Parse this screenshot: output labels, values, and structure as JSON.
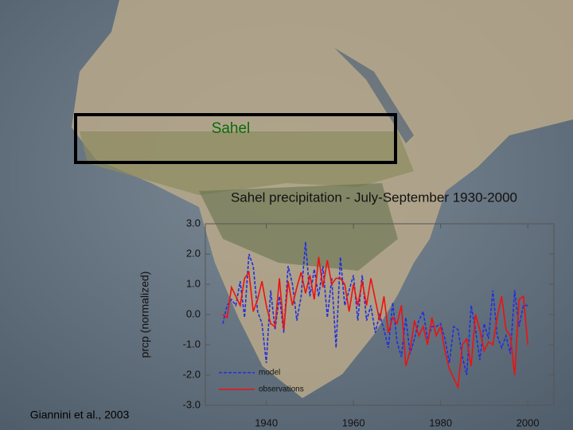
{
  "chart_data": {
    "type": "line",
    "title": "Sahel precipitation - July-September 1930-2000",
    "y_label": "prcp (normalized)",
    "annotations": [
      "Sahel",
      "Giannini et al., 2003"
    ],
    "x": [
      1930,
      1931,
      1932,
      1933,
      1934,
      1935,
      1936,
      1937,
      1938,
      1939,
      1940,
      1941,
      1942,
      1943,
      1944,
      1945,
      1946,
      1947,
      1948,
      1949,
      1950,
      1951,
      1952,
      1953,
      1954,
      1955,
      1956,
      1957,
      1958,
      1959,
      1960,
      1961,
      1962,
      1963,
      1964,
      1965,
      1966,
      1967,
      1968,
      1969,
      1970,
      1971,
      1972,
      1973,
      1974,
      1975,
      1976,
      1977,
      1978,
      1979,
      1980,
      1981,
      1982,
      1983,
      1984,
      1985,
      1986,
      1987,
      1988,
      1989,
      1990,
      1991,
      1992,
      1993,
      1994,
      1995,
      1996,
      1997,
      1998,
      1999,
      2000
    ],
    "series": [
      {
        "name": "model",
        "color": "#1f2fe0",
        "dash": true,
        "values": [
          -0.3,
          0.3,
          0.5,
          0.3,
          1.1,
          -0.1,
          2.0,
          1.6,
          0.1,
          -0.3,
          -1.6,
          0.8,
          -0.5,
          0.6,
          -0.6,
          1.6,
          1.0,
          -0.2,
          0.6,
          2.4,
          0.6,
          1.5,
          0.6,
          1.6,
          -0.1,
          1.2,
          -1.1,
          1.9,
          0.3,
          0.8,
          1.3,
          -0.2,
          1.3,
          -0.2,
          0.3,
          -0.6,
          0.0,
          -0.5,
          -1.1,
          0.4,
          -0.9,
          -1.4,
          -0.1,
          -1.3,
          -0.8,
          -0.2,
          0.1,
          -0.8,
          -0.4,
          -0.4,
          -0.3,
          -0.8,
          -1.6,
          -0.4,
          -0.5,
          -1.4,
          -2.0,
          0.3,
          -0.5,
          -1.5,
          -0.3,
          -0.8,
          0.8,
          -0.7,
          -1.1,
          -0.7,
          -1.3,
          0.8,
          -0.4,
          0.3,
          0.3
        ]
      },
      {
        "name": "observations",
        "color": "#ee1111",
        "dash": false,
        "values": [
          0.0,
          -0.1,
          0.9,
          0.6,
          0.3,
          1.2,
          1.4,
          0.1,
          0.5,
          1.1,
          0.3,
          -0.3,
          -0.4,
          1.2,
          -0.5,
          1.1,
          0.3,
          0.9,
          1.4,
          0.7,
          1.3,
          0.5,
          1.9,
          0.9,
          1.8,
          1.0,
          1.2,
          1.2,
          1.0,
          0.1,
          1.0,
          0.3,
          1.1,
          0.3,
          1.2,
          0.5,
          -0.2,
          0.6,
          -0.6,
          -0.1,
          -0.3,
          0.3,
          -1.7,
          -1.2,
          -0.2,
          -0.7,
          -0.4,
          -1.0,
          -0.1,
          -0.7,
          -0.4,
          -1.2,
          -1.8,
          -2.1,
          -2.4,
          -1.0,
          -0.8,
          -1.7,
          0.0,
          -0.5,
          -1.2,
          -0.9,
          -1.0,
          -0.1,
          0.6,
          -0.5,
          -0.7,
          -2.0,
          0.5,
          0.6,
          -1.0
        ]
      }
    ],
    "xlim": [
      1926,
      2006
    ],
    "xticks": [
      1940,
      1960,
      1980,
      2000
    ],
    "ylim": [
      -3,
      3
    ],
    "yticks": [
      {
        "value": 3,
        "label": "3.0"
      },
      {
        "value": 2,
        "label": "2.0"
      },
      {
        "value": 1,
        "label": "1.0"
      },
      {
        "value": 0,
        "label": "0.0"
      },
      {
        "value": -1,
        "label": "-1.0"
      },
      {
        "value": -2,
        "label": "-2.0"
      },
      {
        "value": -3,
        "label": "-3.0"
      }
    ],
    "legend": "lower left",
    "grid": false
  }
}
